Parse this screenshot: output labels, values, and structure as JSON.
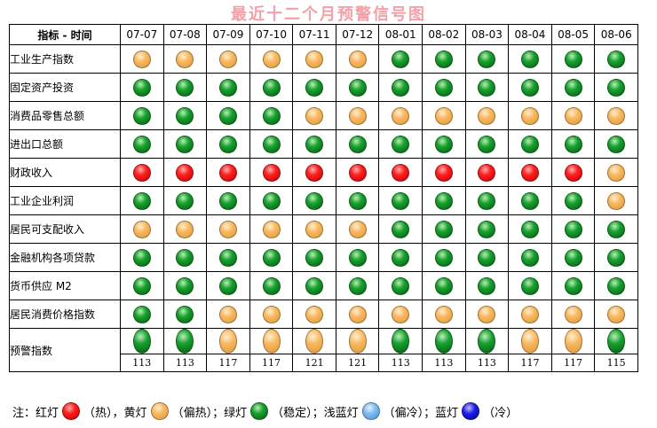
{
  "title": "最近十二个月预警信号图",
  "header_label": "指标 - 时间",
  "months": [
    "07-07",
    "07-08",
    "07-09",
    "07-10",
    "07-11",
    "07-12",
    "08-01",
    "08-02",
    "08-03",
    "08-04",
    "08-05",
    "08-06"
  ],
  "indicators": [
    {
      "name": "工业生产指数",
      "signals": [
        "yellow",
        "yellow",
        "yellow",
        "yellow",
        "yellow",
        "yellow",
        "green",
        "green",
        "green",
        "green",
        "green",
        "green"
      ]
    },
    {
      "name": "固定资产投资",
      "signals": [
        "green",
        "green",
        "green",
        "green",
        "green",
        "green",
        "green",
        "green",
        "green",
        "green",
        "green",
        "green"
      ]
    },
    {
      "name": "消费品零售总额",
      "signals": [
        "green",
        "green",
        "green",
        "green",
        "yellow",
        "yellow",
        "yellow",
        "yellow",
        "yellow",
        "yellow",
        "yellow",
        "yellow"
      ]
    },
    {
      "name": "进出口总额",
      "signals": [
        "green",
        "green",
        "green",
        "green",
        "green",
        "green",
        "green",
        "green",
        "green",
        "green",
        "green",
        "green"
      ]
    },
    {
      "name": "财政收入",
      "signals": [
        "red",
        "red",
        "red",
        "red",
        "red",
        "red",
        "red",
        "red",
        "red",
        "red",
        "red",
        "yellow"
      ]
    },
    {
      "name": "工业企业利润",
      "signals": [
        "green",
        "green",
        "green",
        "green",
        "green",
        "green",
        "green",
        "green",
        "green",
        "green",
        "green",
        "yellow"
      ]
    },
    {
      "name": "居民可支配收入",
      "signals": [
        "yellow",
        "yellow",
        "yellow",
        "yellow",
        "yellow",
        "yellow",
        "green",
        "green",
        "green",
        "green",
        "green",
        "green"
      ]
    },
    {
      "name": "金融机构各项贷款",
      "signals": [
        "green",
        "green",
        "green",
        "green",
        "green",
        "green",
        "green",
        "green",
        "green",
        "green",
        "green",
        "green"
      ]
    },
    {
      "name": "货币供应 M2",
      "signals": [
        "green",
        "green",
        "green",
        "green",
        "green",
        "green",
        "green",
        "green",
        "green",
        "green",
        "green",
        "green"
      ]
    },
    {
      "name": "居民消费价格指数",
      "signals": [
        "green",
        "green",
        "yellow",
        "yellow",
        "yellow",
        "yellow",
        "yellow",
        "yellow",
        "yellow",
        "yellow",
        "yellow",
        "yellow"
      ]
    }
  ],
  "warning_index": {
    "name": "预警指数",
    "signals": [
      "green",
      "green",
      "yellow",
      "yellow",
      "yellow",
      "yellow",
      "green",
      "green",
      "green",
      "yellow",
      "yellow",
      "green"
    ],
    "scores": [
      "113",
      "113",
      "117",
      "117",
      "121",
      "121",
      "113",
      "113",
      "113",
      "117",
      "117",
      "115"
    ]
  },
  "legend": {
    "prefix": "注：",
    "items": [
      {
        "label": "红灯",
        "color": "red",
        "desc": "（热），"
      },
      {
        "label": "黄灯",
        "color": "yellow",
        "desc": "（偏热）；"
      },
      {
        "label": "绿灯",
        "color": "green",
        "desc": "（稳定）；"
      },
      {
        "label": "浅蓝灯",
        "color": "lblue",
        "desc": "（偏冷）；"
      },
      {
        "label": "蓝灯",
        "color": "blue",
        "desc": "（冷）"
      }
    ]
  }
}
